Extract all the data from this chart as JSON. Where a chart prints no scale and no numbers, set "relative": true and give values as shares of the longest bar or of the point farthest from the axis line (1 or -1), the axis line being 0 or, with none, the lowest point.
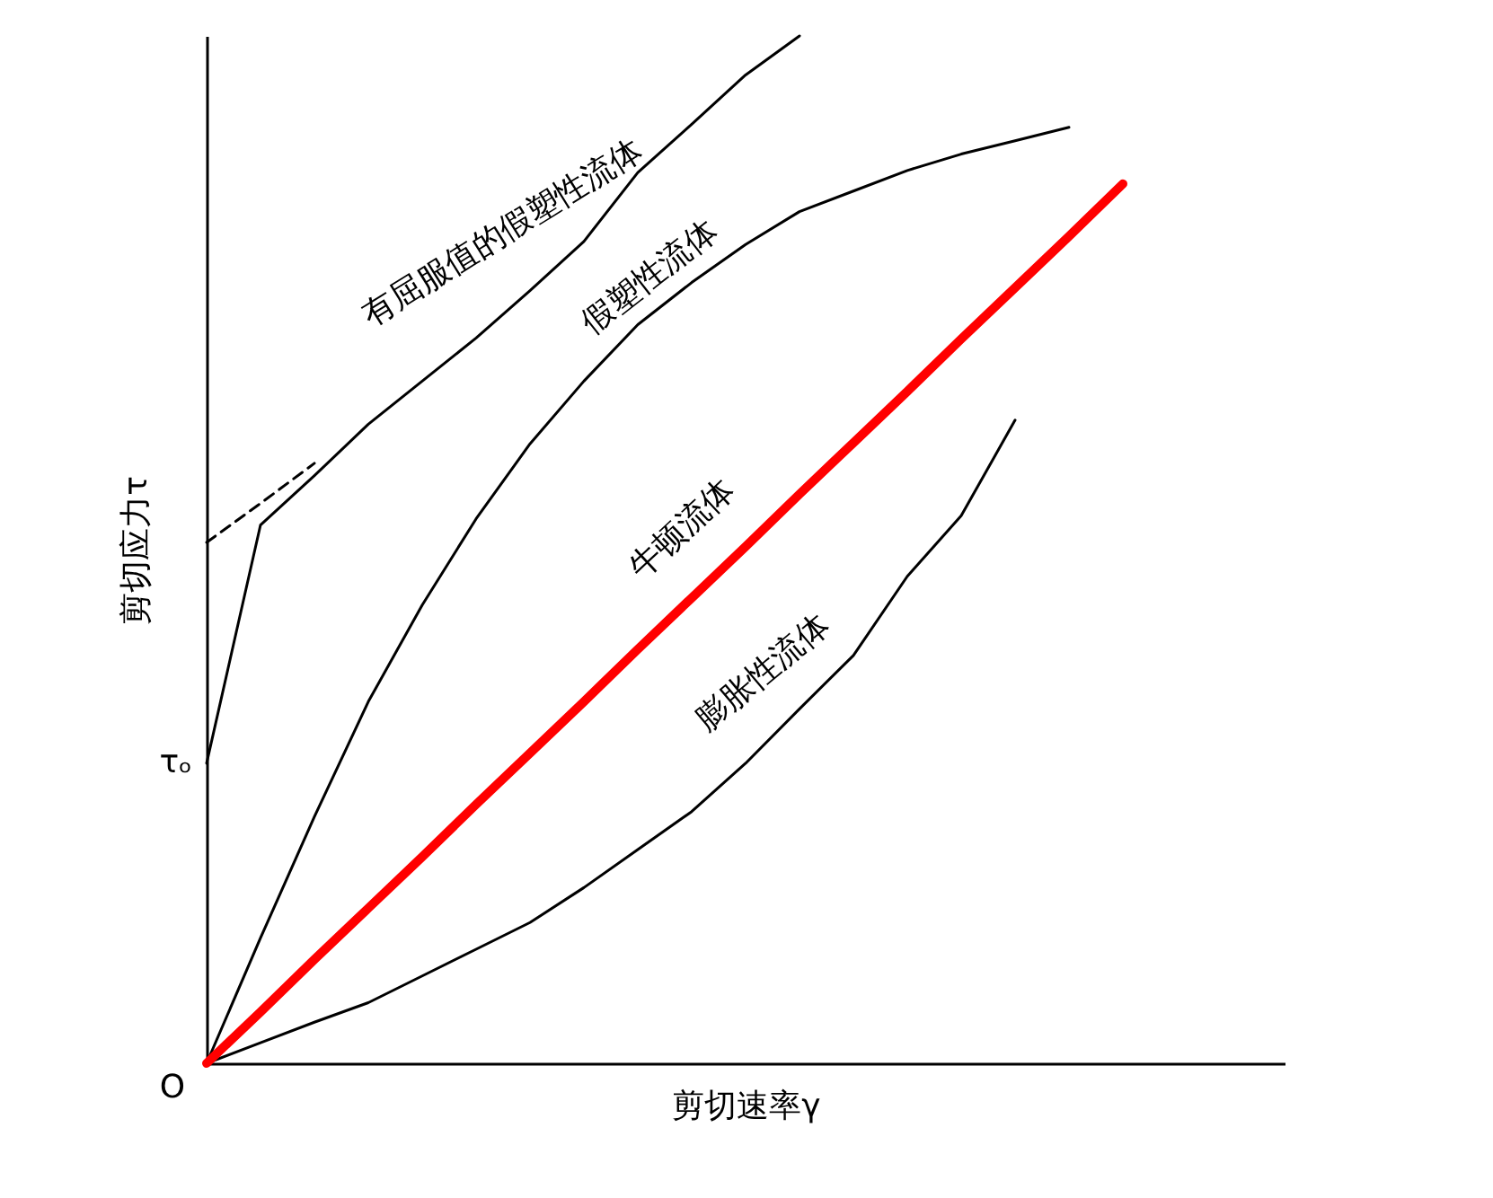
{
  "chart_data": {
    "type": "line",
    "relative": true,
    "xlabel": "剪切速率γ",
    "ylabel": "剪切应力τ",
    "tick_labels": false,
    "categories": [
      null,
      null,
      null,
      null,
      null,
      null,
      null,
      null,
      null,
      null,
      null,
      null,
      null,
      null,
      null,
      null,
      null,
      null
    ],
    "series": [
      {
        "name": "有屈服值的假塑性流体",
        "color": "#000000",
        "values": [
          0.292,
          0.524,
          0.572,
          0.622,
          0.664,
          0.706,
          0.752,
          0.8,
          0.867,
          0.914,
          0.962,
          1.0,
          null,
          null,
          null,
          null,
          null,
          null
        ]
      },
      {
        "color": "#000000",
        "line_style": "dashed",
        "values": [
          0.507,
          0.545,
          0.584,
          null,
          null,
          null,
          null,
          null,
          null,
          null,
          null,
          null,
          null,
          null,
          null,
          null,
          null,
          null
        ]
      },
      {
        "name": "假塑性流体",
        "color": "#000000",
        "values": [
          0,
          0.122,
          0.24,
          0.352,
          0.446,
          0.53,
          0.603,
          0.664,
          0.719,
          0.76,
          0.797,
          0.829,
          0.849,
          0.869,
          0.885,
          0.898,
          0.911,
          null
        ]
      },
      {
        "name": "膨胀性流体",
        "color": "#000000",
        "values": [
          0,
          0.02,
          0.04,
          0.059,
          0.085,
          0.111,
          0.137,
          0.171,
          0.208,
          0.245,
          0.292,
          0.345,
          0.397,
          0.474,
          0.533,
          0.626,
          null,
          null
        ]
      },
      {
        "name": "牛顿流体",
        "color": "#ff0000",
        "values": [
          0,
          0.05,
          0.101,
          0.151,
          0.201,
          0.252,
          0.302,
          0.352,
          0.403,
          0.453,
          0.503,
          0.554,
          0.604,
          0.654,
          0.705,
          0.755,
          0.805,
          0.856
        ]
      }
    ],
    "annotations": [
      "τₒ",
      "O"
    ]
  }
}
